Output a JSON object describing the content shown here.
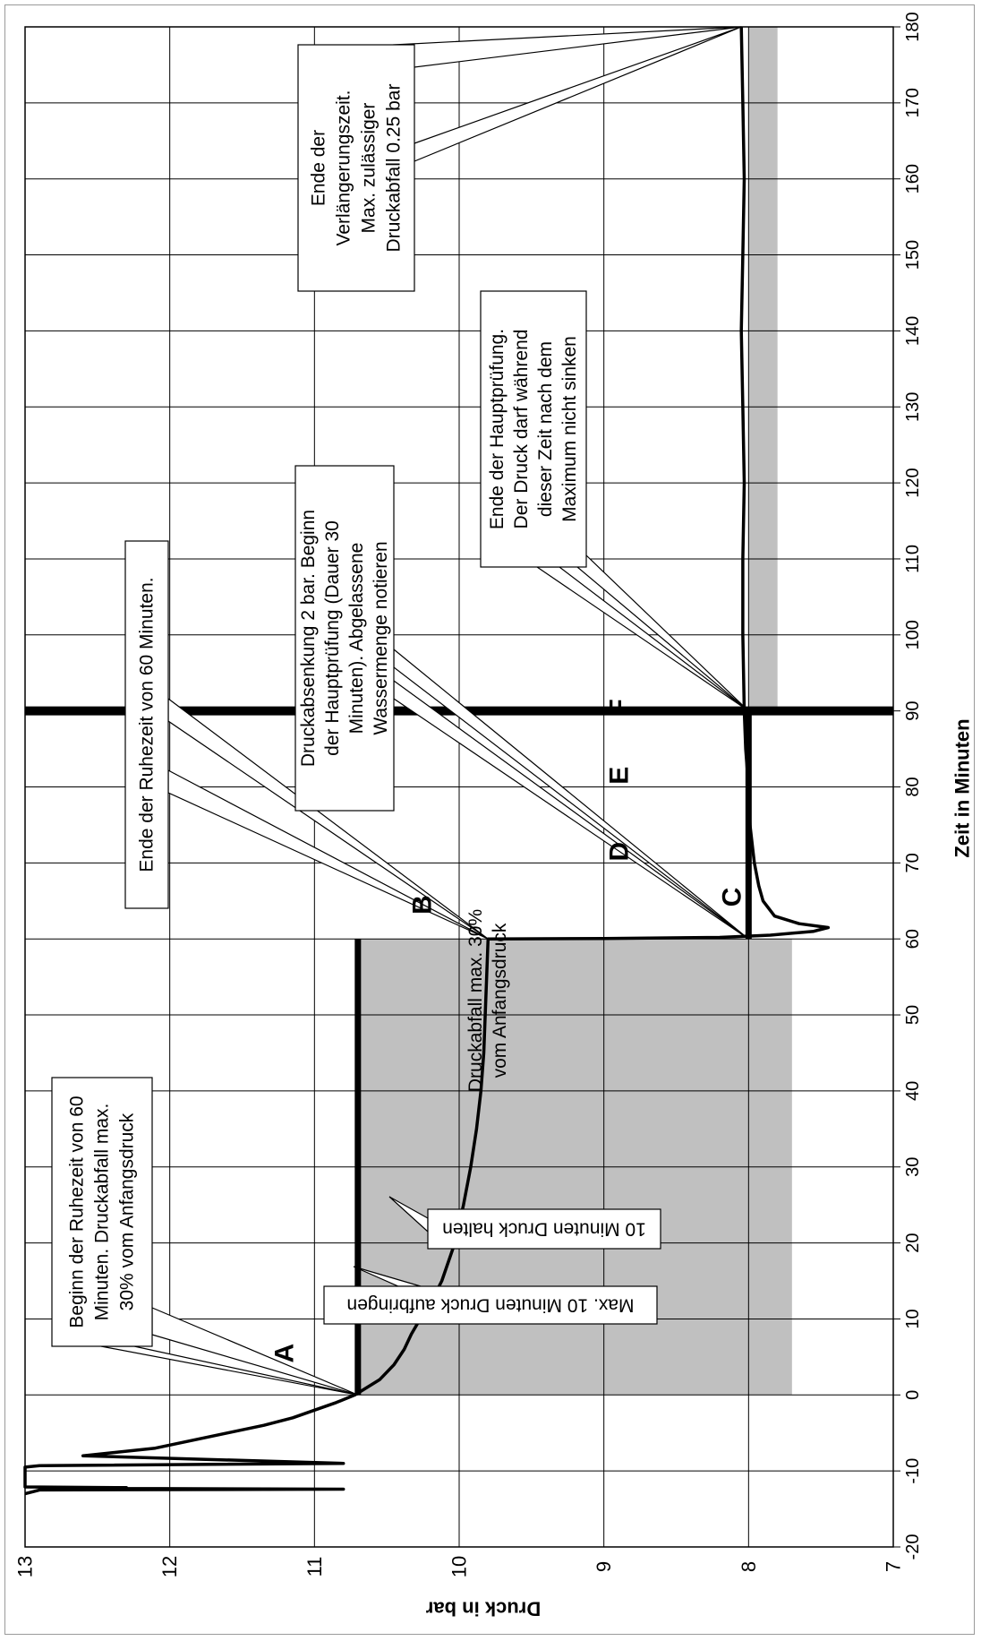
{
  "chart_data": {
    "type": "line",
    "orientation": "rotated 90° clockwise (time axis along the right side)",
    "xlabel": "Zeit in Minuten",
    "ylabel": "Druck in bar",
    "xlim": [
      -20,
      180
    ],
    "ylim": [
      7,
      13
    ],
    "x_ticks": [
      "-20",
      "-10",
      "0",
      "10",
      "20",
      "30",
      "40",
      "50",
      "60",
      "70",
      "80",
      "90",
      "100",
      "110",
      "120",
      "130",
      "140",
      "150",
      "160",
      "170",
      "180"
    ],
    "y_ticks": [
      "7",
      "8",
      "9",
      "10",
      "11",
      "12",
      "13"
    ],
    "grid": true,
    "colors": {
      "line": "#000000",
      "shade": "#c0c0c0",
      "grid": "#000000",
      "frame": "#9a9a9a"
    },
    "series": [
      {
        "x": [
          -13,
          -12.5,
          -12.4,
          -12.3,
          -12.2,
          -12.1,
          -11.0,
          -10.0,
          -9.5,
          -9.3,
          -9.0,
          -8.0,
          -7.0,
          -6.0,
          -5.0,
          -4.0,
          -3.0,
          -2.0,
          -1.0,
          0,
          2,
          4,
          6,
          8,
          10,
          12,
          15,
          20,
          25,
          30,
          35,
          40,
          45,
          50,
          55,
          60,
          60.05,
          60.2,
          60.5,
          61,
          61.5,
          62,
          63,
          65,
          67,
          70,
          75,
          80,
          85,
          90,
          100,
          110,
          120,
          130,
          140,
          150,
          160,
          170,
          180
        ],
        "y": [
          13.0,
          12.9,
          10.8,
          12.3,
          12.3,
          13.0,
          13.0,
          13.0,
          13.0,
          12.9,
          10.8,
          12.6,
          12.1,
          11.85,
          11.6,
          11.35,
          11.15,
          11.0,
          10.85,
          10.72,
          10.55,
          10.45,
          10.38,
          10.33,
          10.27,
          10.2,
          10.12,
          10.03,
          9.97,
          9.92,
          9.88,
          9.85,
          9.83,
          9.82,
          9.81,
          9.8,
          9.0,
          8.2,
          7.85,
          7.55,
          7.45,
          7.65,
          7.82,
          7.9,
          7.93,
          7.96,
          7.99,
          8.0,
          8.02,
          8.03,
          8.04,
          8.04,
          8.03,
          8.04,
          8.05,
          8.04,
          8.03,
          8.04,
          8.05
        ]
      }
    ],
    "reference_lines": [
      {
        "axis": "pressure",
        "value": 10.7,
        "from": 0,
        "to": 60
      },
      {
        "axis": "pressure",
        "value": 8.0,
        "from": 60,
        "to": 90
      },
      {
        "axis": "time",
        "value": 90,
        "from": 7,
        "to": 13
      }
    ],
    "shaded_regions": [
      {
        "time_from": 0,
        "time_to": 60,
        "pressure_from": 7.7,
        "pressure_to": 10.7
      },
      {
        "time_from": 90,
        "time_to": 180,
        "pressure_from": 7.8,
        "pressure_to": 8.0
      }
    ],
    "annotations": {
      "shade_text": [
        "Druckabfall max. 30%",
        "vom Anfangsdruck"
      ],
      "max_aufbringen": "Max. 10 Minuten Druck aufbringen",
      "druck_halten": "10 Minuten Druck halten",
      "box_beginn": [
        "Beginn der Ruhezeit von 60",
        "Minuten. Druckabfall max.",
        "30% vom Anfangsdruck"
      ],
      "box_ende_ruhe": "Ende der Ruhezeit von 60 Minuten.",
      "box_druckabsenkung": [
        "Druckabsenkung 2 bar. Beginn",
        "der Hauptprüfung (Dauer 30",
        "Minuten). Abgelassene",
        "Wassermenge notieren"
      ],
      "box_ende_haupt": [
        "Ende der Hauptprüfung.",
        "Der Druck darf während",
        "dieser Zeit nach dem",
        "Maximum nicht sinken"
      ],
      "box_ende_verl": [
        "Ende der",
        "Verlängerungszeit.",
        "Max. zulässiger",
        "Druckabfall 0.25 bar"
      ]
    },
    "points": [
      {
        "label": "A",
        "time": 0,
        "pressure": 10.7
      },
      {
        "label": "B",
        "time": 60,
        "pressure": 9.8
      },
      {
        "label": "C",
        "time": 61,
        "pressure": 7.45
      },
      {
        "label": "D",
        "time": 71,
        "pressure": 8.0
      },
      {
        "label": "E",
        "time": 81,
        "pressure": 8.0
      },
      {
        "label": "F",
        "time": 90,
        "pressure": 8.0
      }
    ]
  }
}
